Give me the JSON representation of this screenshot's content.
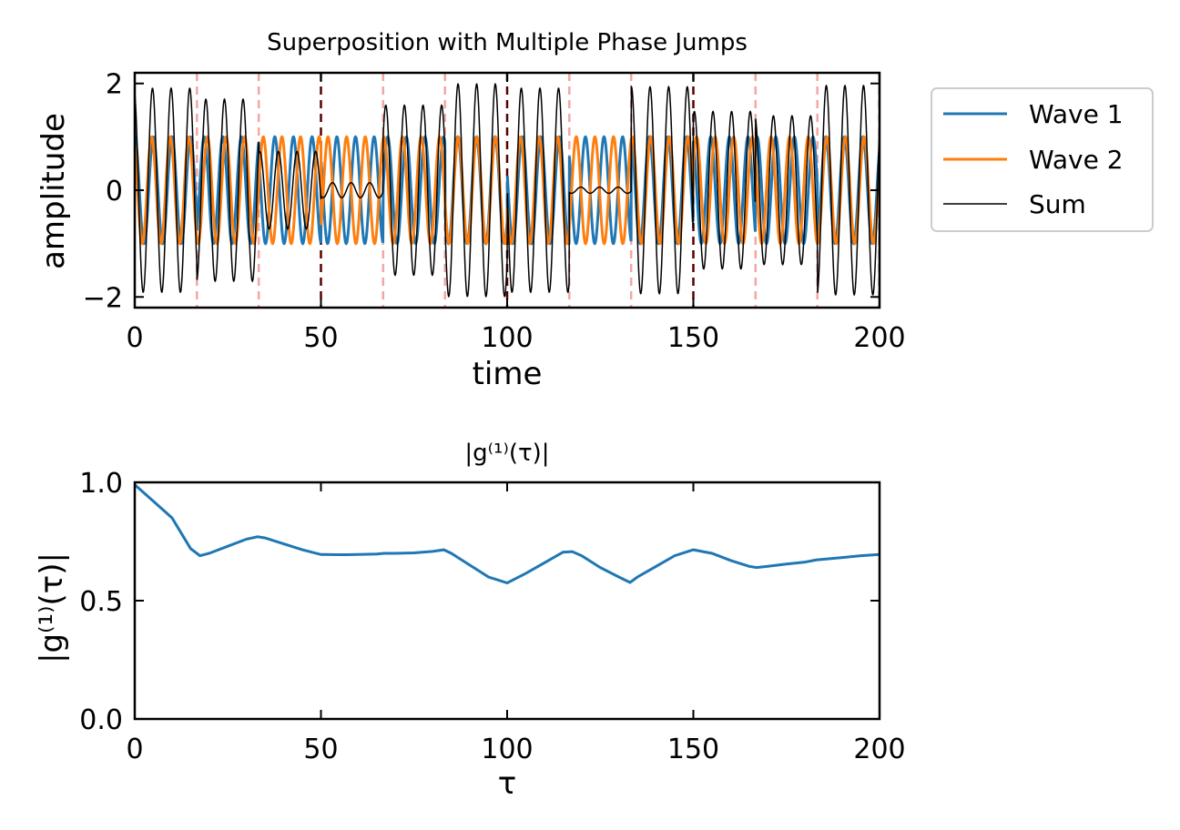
{
  "chart_data": [
    {
      "type": "line",
      "title": "Superposition with Multiple Phase Jumps",
      "xlabel": "time",
      "ylabel": "amplitude",
      "xlim": [
        0,
        200
      ],
      "ylim": [
        -2.2,
        2.2
      ],
      "xticks": [
        "0",
        "50",
        "100",
        "150",
        "200"
      ],
      "yticks": [
        "−2",
        "0",
        "2"
      ],
      "legend_position": "outside-right",
      "series": [
        {
          "name": "Wave 1",
          "color": "#1f77b4",
          "amplitude": 1,
          "period": 5
        },
        {
          "name": "Wave 2",
          "color": "#ff7f0e",
          "amplitude": 1,
          "period": 5
        },
        {
          "name": "Sum",
          "color": "#000000"
        }
      ],
      "phase_jump_times_wave1": [
        16.7,
        33.3,
        66.7,
        83.3,
        116.7,
        133.3,
        166.7,
        183.3
      ],
      "phase_jump_times_both": [
        50,
        100,
        150,
        200
      ],
      "jump_line_color": "#f4a6a6",
      "jump_line_color_both": "#5a0000"
    },
    {
      "type": "line",
      "title": "|g⁽¹⁾(τ)|",
      "xlabel": "τ",
      "ylabel": "|g⁽¹⁾(τ)|",
      "xlim": [
        0,
        200
      ],
      "ylim": [
        0,
        1
      ],
      "xticks": [
        "0",
        "50",
        "100",
        "150",
        "200"
      ],
      "yticks": [
        "0.0",
        "0.5",
        "1.0"
      ],
      "series": [
        {
          "color": "#1f77b4",
          "x": [
            0,
            5,
            10,
            15,
            17.5,
            20,
            25,
            30,
            33,
            35,
            40,
            45,
            50,
            55,
            60,
            65,
            67,
            70,
            75,
            80,
            83,
            85,
            90,
            95,
            100,
            105,
            110,
            115,
            117.5,
            120,
            125,
            130,
            133,
            135,
            140,
            145,
            150,
            155,
            160,
            165,
            167,
            170,
            175,
            180,
            183,
            185,
            190,
            195,
            200
          ],
          "y": [
            0.99,
            0.92,
            0.85,
            0.72,
            0.69,
            0.7,
            0.73,
            0.76,
            0.77,
            0.765,
            0.74,
            0.715,
            0.695,
            0.694,
            0.695,
            0.697,
            0.7,
            0.7,
            0.702,
            0.708,
            0.715,
            0.7,
            0.65,
            0.6,
            0.575,
            0.615,
            0.66,
            0.705,
            0.707,
            0.69,
            0.64,
            0.6,
            0.577,
            0.6,
            0.645,
            0.69,
            0.715,
            0.7,
            0.67,
            0.645,
            0.64,
            0.645,
            0.655,
            0.663,
            0.672,
            0.675,
            0.682,
            0.69,
            0.695
          ]
        }
      ]
    }
  ]
}
